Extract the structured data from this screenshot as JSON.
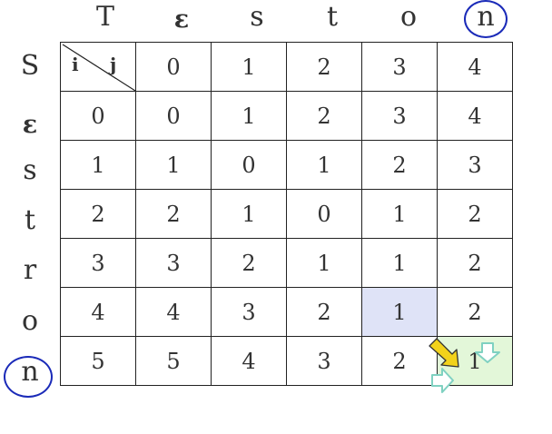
{
  "column_header": [
    "T",
    "ε",
    "s",
    "t",
    "o",
    "n"
  ],
  "row_header": [
    "S",
    "ε",
    "s",
    "t",
    "r",
    "o",
    "n"
  ],
  "corner": {
    "row_index_label": "i",
    "col_index_label": "j"
  },
  "index_row": [
    "0",
    "1",
    "2",
    "3",
    "4"
  ],
  "rows": [
    [
      "0",
      "0",
      "1",
      "2",
      "3",
      "4"
    ],
    [
      "1",
      "1",
      "0",
      "1",
      "2",
      "3"
    ],
    [
      "2",
      "2",
      "1",
      "0",
      "1",
      "2"
    ],
    [
      "3",
      "3",
      "2",
      "1",
      "1",
      "2"
    ],
    [
      "4",
      "4",
      "3",
      "2",
      "1",
      "2"
    ],
    [
      "5",
      "5",
      "4",
      "3",
      "2",
      "1"
    ]
  ],
  "highlight_colors": {
    "diagonal_source": "#dfe3f7",
    "target": "#e3f7d9",
    "circle": "#1a2ab8",
    "diag_arrow": "#f2d21b",
    "side_arrows": "#7fd1c1"
  }
}
